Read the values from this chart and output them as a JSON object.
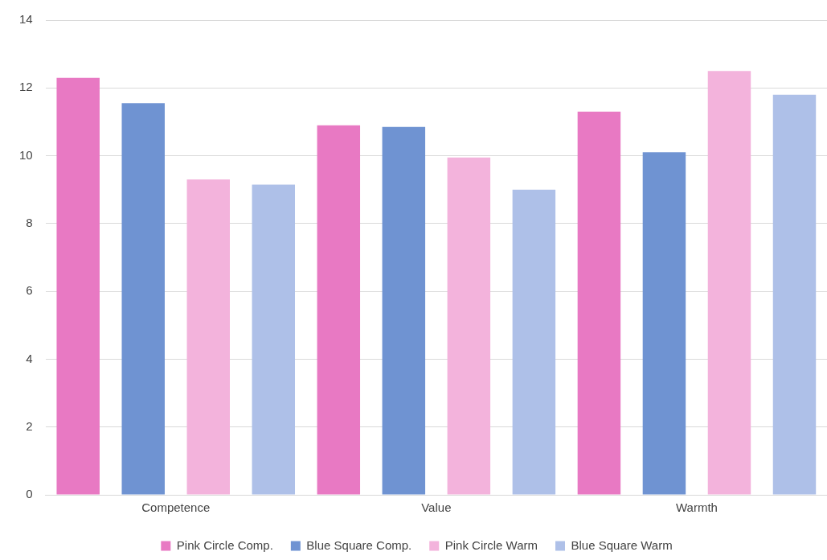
{
  "chart_data": {
    "type": "bar",
    "categories": [
      "Competence",
      "Value",
      "Warmth"
    ],
    "series": [
      {
        "name": "Pink Circle Comp.",
        "color": "#e879c3",
        "values": [
          12.3,
          10.9,
          11.3
        ]
      },
      {
        "name": "Blue Square Comp.",
        "color": "#6f93d2",
        "values": [
          11.55,
          10.85,
          10.1
        ]
      },
      {
        "name": "Pink Circle Warm",
        "color": "#f3b3dc",
        "values": [
          9.3,
          9.95,
          12.5
        ]
      },
      {
        "name": "Blue Square Warm",
        "color": "#aec0e8",
        "values": [
          9.15,
          9.0,
          11.8
        ]
      }
    ],
    "ylim": [
      0,
      14
    ],
    "yticks": [
      0,
      2,
      4,
      6,
      8,
      10,
      12,
      14
    ],
    "grid": "y",
    "legend": "bottom"
  }
}
